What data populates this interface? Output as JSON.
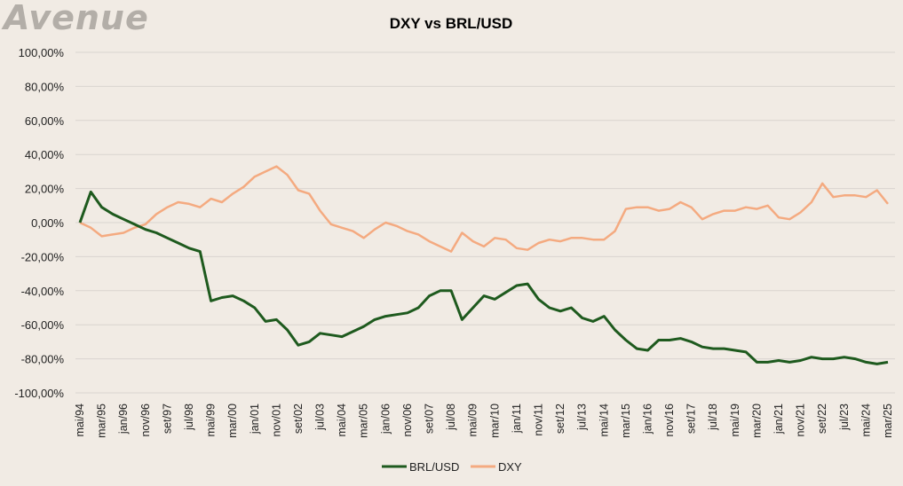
{
  "logo": "AVENUE",
  "chart_data": {
    "type": "line",
    "title": "DXY vs BRL/USD",
    "xlabel": "",
    "ylabel": "",
    "ylim": [
      -100,
      100
    ],
    "y_ticks": [
      "100,00%",
      "80,00%",
      "60,00%",
      "40,00%",
      "20,00%",
      "0,00%",
      "-20,00%",
      "-40,00%",
      "-60,00%",
      "-80,00%",
      "-100,00%"
    ],
    "y_tick_values": [
      100,
      80,
      60,
      40,
      20,
      0,
      -20,
      -40,
      -60,
      -80,
      -100
    ],
    "x_tick_labels": [
      "mai/94",
      "mar/95",
      "jan/96",
      "nov/96",
      "set/97",
      "jul/98",
      "mai/99",
      "mar/00",
      "jan/01",
      "nov/01",
      "set/02",
      "jul/03",
      "mai/04",
      "mar/05",
      "jan/06",
      "nov/06",
      "set/07",
      "jul/08",
      "mai/09",
      "mar/10",
      "jan/11",
      "nov/11",
      "set/12",
      "jul/13",
      "mai/14",
      "mar/15",
      "jan/16",
      "nov/16",
      "set/17",
      "jul/18",
      "mai/19",
      "mar/20",
      "jan/21",
      "nov/21",
      "set/22",
      "jul/23",
      "mai/24",
      "mar/25"
    ],
    "grid": "horizontal",
    "legend": "bottom",
    "x": [
      "1994-05",
      "1994-10",
      "1995-03",
      "1995-08",
      "1996-01",
      "1996-06",
      "1996-11",
      "1997-04",
      "1997-09",
      "1998-02",
      "1998-07",
      "1998-12",
      "1999-05",
      "1999-10",
      "2000-03",
      "2000-08",
      "2001-01",
      "2001-06",
      "2001-11",
      "2002-04",
      "2002-09",
      "2003-02",
      "2003-07",
      "2003-12",
      "2004-05",
      "2004-10",
      "2005-03",
      "2005-08",
      "2006-01",
      "2006-06",
      "2006-11",
      "2007-04",
      "2007-09",
      "2008-02",
      "2008-07",
      "2008-12",
      "2009-05",
      "2009-10",
      "2010-03",
      "2010-08",
      "2011-01",
      "2011-06",
      "2011-11",
      "2012-04",
      "2012-09",
      "2013-02",
      "2013-07",
      "2013-12",
      "2014-05",
      "2014-10",
      "2015-03",
      "2015-08",
      "2016-01",
      "2016-06",
      "2016-11",
      "2017-04",
      "2017-09",
      "2018-02",
      "2018-07",
      "2018-12",
      "2019-05",
      "2019-10",
      "2020-03",
      "2020-08",
      "2021-01",
      "2021-06",
      "2021-11",
      "2022-04",
      "2022-09",
      "2023-02",
      "2023-07",
      "2023-12",
      "2024-05",
      "2024-10",
      "2025-03"
    ],
    "series": [
      {
        "name": "BRL/USD",
        "color": "#1e5a1e",
        "values": [
          0,
          18,
          9,
          5,
          2,
          -1,
          -4,
          -6,
          -9,
          -12,
          -15,
          -17,
          -46,
          -44,
          -43,
          -46,
          -50,
          -58,
          -57,
          -63,
          -72,
          -70,
          -65,
          -66,
          -67,
          -64,
          -61,
          -57,
          -55,
          -54,
          -53,
          -50,
          -43,
          -40,
          -40,
          -57,
          -50,
          -43,
          -45,
          -41,
          -37,
          -36,
          -45,
          -50,
          -52,
          -50,
          -56,
          -58,
          -55,
          -63,
          -69,
          -74,
          -75,
          -69,
          -69,
          -68,
          -70,
          -73,
          -74,
          -74,
          -75,
          -76,
          -82,
          -82,
          -81,
          -82,
          -81,
          -79,
          -80,
          -80,
          -79,
          -80,
          -82,
          -83,
          -82
        ]
      },
      {
        "name": "DXY",
        "color": "#f4aa80",
        "values": [
          0,
          -3,
          -8,
          -7,
          -6,
          -3,
          -1,
          5,
          9,
          12,
          11,
          9,
          14,
          12,
          17,
          21,
          27,
          30,
          33,
          28,
          19,
          17,
          7,
          -1,
          -3,
          -5,
          -9,
          -4,
          0,
          -2,
          -5,
          -7,
          -11,
          -14,
          -17,
          -6,
          -11,
          -14,
          -9,
          -10,
          -15,
          -16,
          -12,
          -10,
          -11,
          -9,
          -9,
          -10,
          -10,
          -5,
          8,
          9,
          9,
          7,
          8,
          12,
          9,
          2,
          5,
          7,
          7,
          9,
          8,
          10,
          3,
          2,
          6,
          12,
          23,
          15,
          16,
          16,
          15,
          19,
          11
        ]
      }
    ]
  }
}
